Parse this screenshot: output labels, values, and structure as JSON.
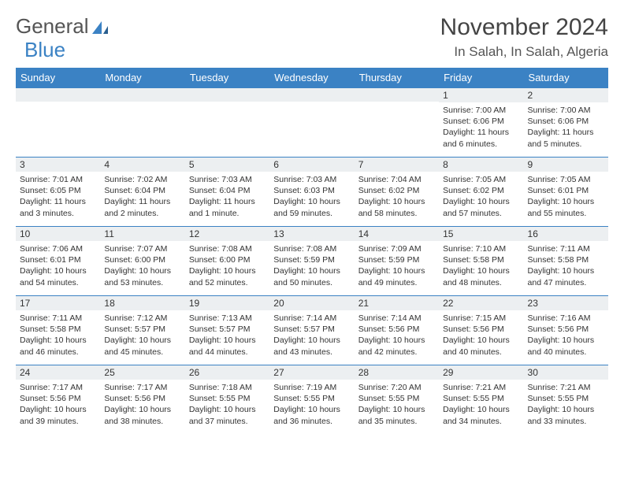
{
  "logo": {
    "part1": "General",
    "part2": "Blue"
  },
  "title": "November 2024",
  "location": "In Salah, In Salah, Algeria",
  "weekdays": [
    "Sunday",
    "Monday",
    "Tuesday",
    "Wednesday",
    "Thursday",
    "Friday",
    "Saturday"
  ],
  "colors": {
    "header_bg": "#3b82c4",
    "daynum_bg": "#eceff1",
    "border": "#3b82c4"
  },
  "grid": [
    [
      null,
      null,
      null,
      null,
      null,
      {
        "n": "1",
        "sr": "7:00 AM",
        "ss": "6:06 PM",
        "dl": "11 hours and 6 minutes."
      },
      {
        "n": "2",
        "sr": "7:00 AM",
        "ss": "6:06 PM",
        "dl": "11 hours and 5 minutes."
      }
    ],
    [
      {
        "n": "3",
        "sr": "7:01 AM",
        "ss": "6:05 PM",
        "dl": "11 hours and 3 minutes."
      },
      {
        "n": "4",
        "sr": "7:02 AM",
        "ss": "6:04 PM",
        "dl": "11 hours and 2 minutes."
      },
      {
        "n": "5",
        "sr": "7:03 AM",
        "ss": "6:04 PM",
        "dl": "11 hours and 1 minute."
      },
      {
        "n": "6",
        "sr": "7:03 AM",
        "ss": "6:03 PM",
        "dl": "10 hours and 59 minutes."
      },
      {
        "n": "7",
        "sr": "7:04 AM",
        "ss": "6:02 PM",
        "dl": "10 hours and 58 minutes."
      },
      {
        "n": "8",
        "sr": "7:05 AM",
        "ss": "6:02 PM",
        "dl": "10 hours and 57 minutes."
      },
      {
        "n": "9",
        "sr": "7:05 AM",
        "ss": "6:01 PM",
        "dl": "10 hours and 55 minutes."
      }
    ],
    [
      {
        "n": "10",
        "sr": "7:06 AM",
        "ss": "6:01 PM",
        "dl": "10 hours and 54 minutes."
      },
      {
        "n": "11",
        "sr": "7:07 AM",
        "ss": "6:00 PM",
        "dl": "10 hours and 53 minutes."
      },
      {
        "n": "12",
        "sr": "7:08 AM",
        "ss": "6:00 PM",
        "dl": "10 hours and 52 minutes."
      },
      {
        "n": "13",
        "sr": "7:08 AM",
        "ss": "5:59 PM",
        "dl": "10 hours and 50 minutes."
      },
      {
        "n": "14",
        "sr": "7:09 AM",
        "ss": "5:59 PM",
        "dl": "10 hours and 49 minutes."
      },
      {
        "n": "15",
        "sr": "7:10 AM",
        "ss": "5:58 PM",
        "dl": "10 hours and 48 minutes."
      },
      {
        "n": "16",
        "sr": "7:11 AM",
        "ss": "5:58 PM",
        "dl": "10 hours and 47 minutes."
      }
    ],
    [
      {
        "n": "17",
        "sr": "7:11 AM",
        "ss": "5:58 PM",
        "dl": "10 hours and 46 minutes."
      },
      {
        "n": "18",
        "sr": "7:12 AM",
        "ss": "5:57 PM",
        "dl": "10 hours and 45 minutes."
      },
      {
        "n": "19",
        "sr": "7:13 AM",
        "ss": "5:57 PM",
        "dl": "10 hours and 44 minutes."
      },
      {
        "n": "20",
        "sr": "7:14 AM",
        "ss": "5:57 PM",
        "dl": "10 hours and 43 minutes."
      },
      {
        "n": "21",
        "sr": "7:14 AM",
        "ss": "5:56 PM",
        "dl": "10 hours and 42 minutes."
      },
      {
        "n": "22",
        "sr": "7:15 AM",
        "ss": "5:56 PM",
        "dl": "10 hours and 40 minutes."
      },
      {
        "n": "23",
        "sr": "7:16 AM",
        "ss": "5:56 PM",
        "dl": "10 hours and 40 minutes."
      }
    ],
    [
      {
        "n": "24",
        "sr": "7:17 AM",
        "ss": "5:56 PM",
        "dl": "10 hours and 39 minutes."
      },
      {
        "n": "25",
        "sr": "7:17 AM",
        "ss": "5:56 PM",
        "dl": "10 hours and 38 minutes."
      },
      {
        "n": "26",
        "sr": "7:18 AM",
        "ss": "5:55 PM",
        "dl": "10 hours and 37 minutes."
      },
      {
        "n": "27",
        "sr": "7:19 AM",
        "ss": "5:55 PM",
        "dl": "10 hours and 36 minutes."
      },
      {
        "n": "28",
        "sr": "7:20 AM",
        "ss": "5:55 PM",
        "dl": "10 hours and 35 minutes."
      },
      {
        "n": "29",
        "sr": "7:21 AM",
        "ss": "5:55 PM",
        "dl": "10 hours and 34 minutes."
      },
      {
        "n": "30",
        "sr": "7:21 AM",
        "ss": "5:55 PM",
        "dl": "10 hours and 33 minutes."
      }
    ]
  ]
}
